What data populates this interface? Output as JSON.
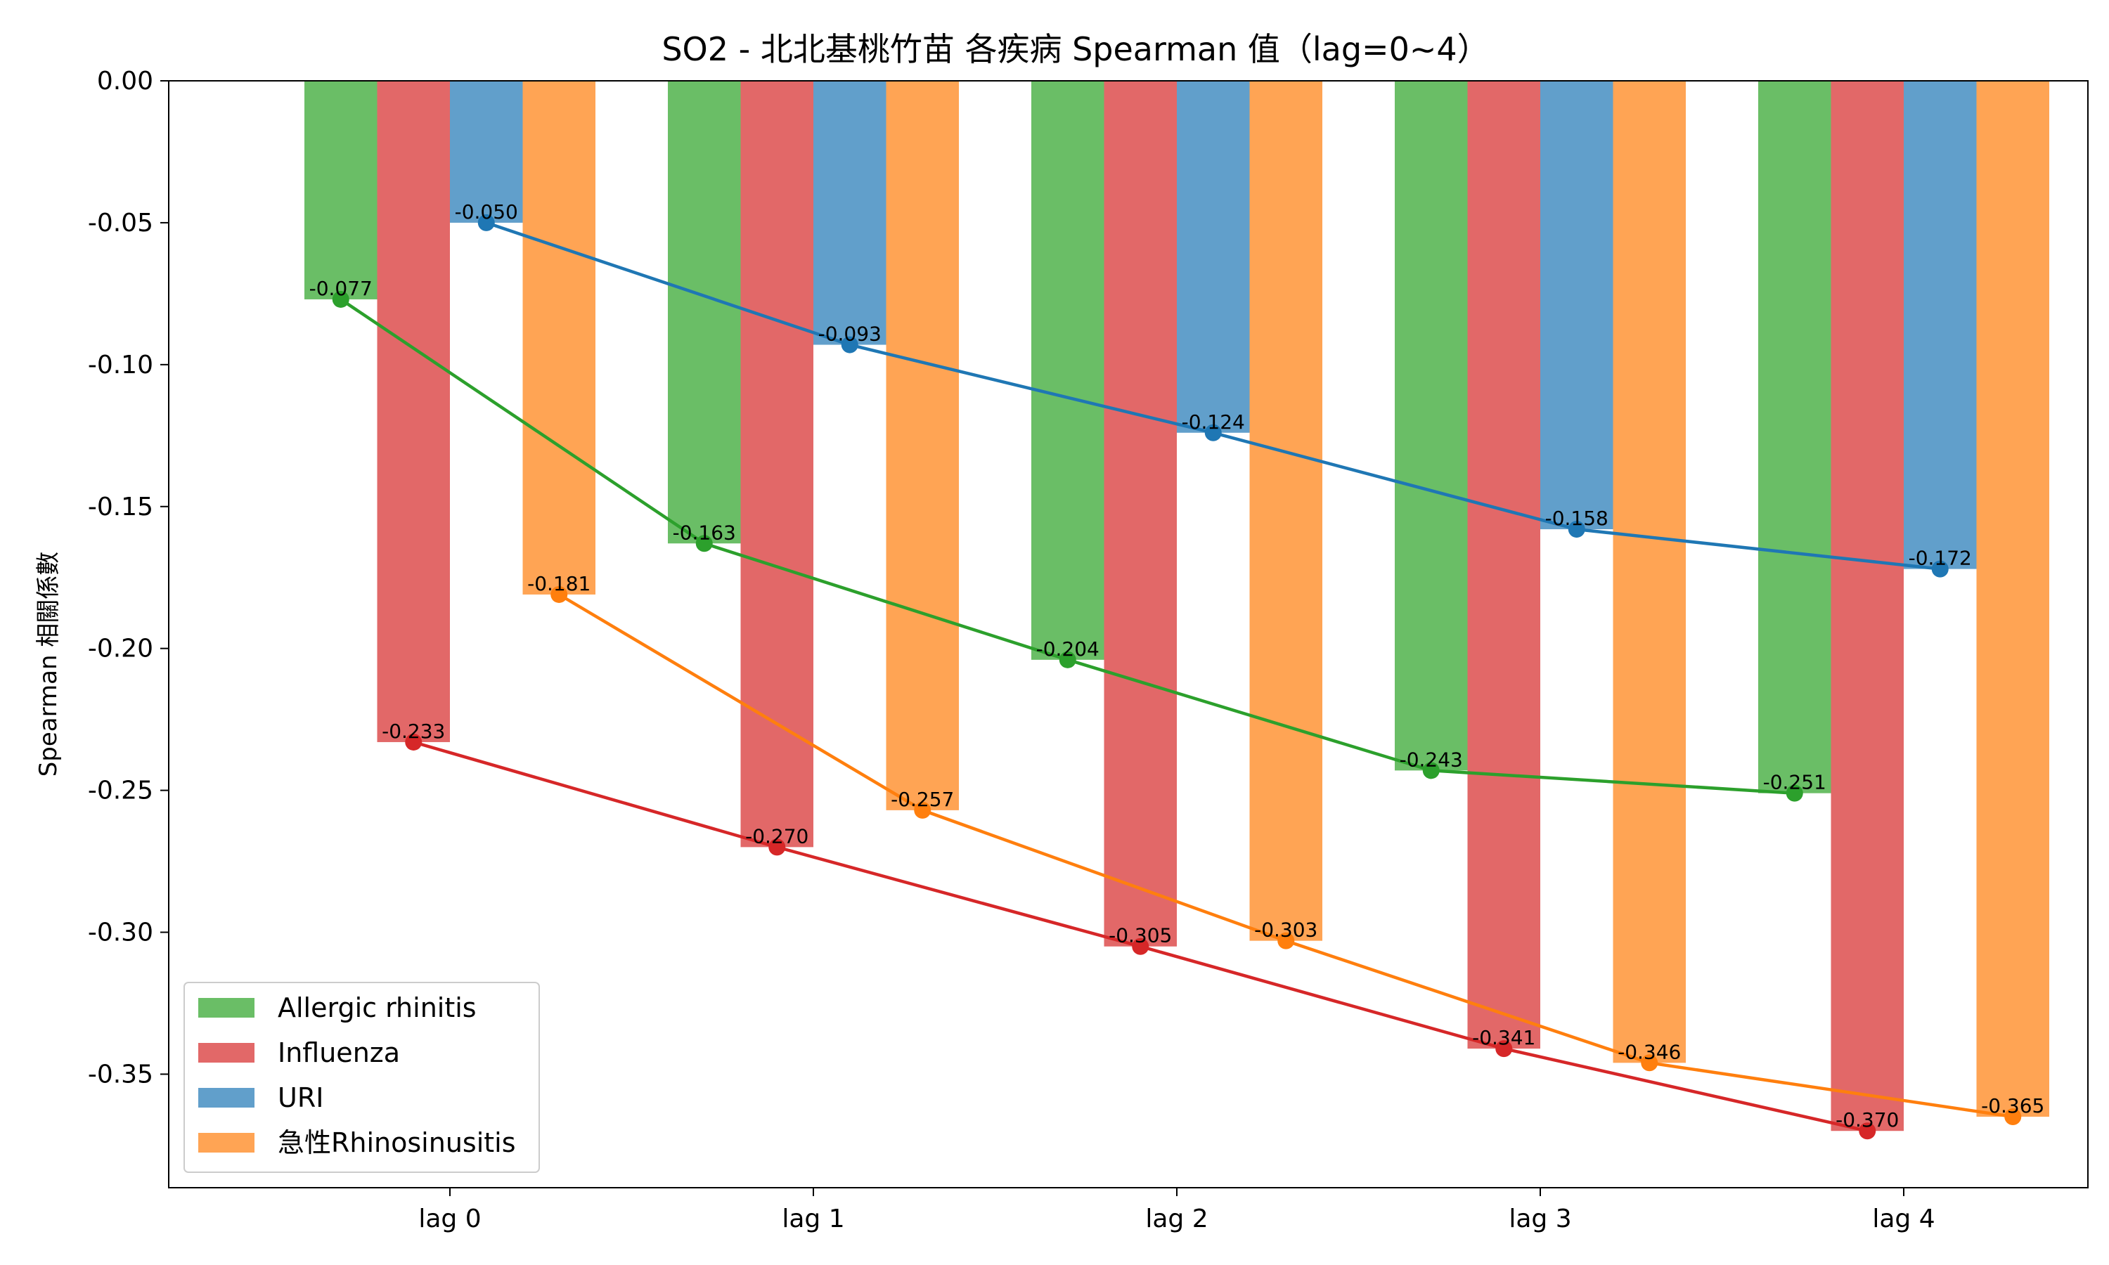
{
  "chart_data": {
    "type": "bar",
    "title": "SO2 - 北北基桃竹苗 各疾病 Spearman 值（lag=0~4）",
    "xlabel": "",
    "ylabel": "Spearman 相關係數",
    "categories": [
      "lag 0",
      "lag 1",
      "lag 2",
      "lag 3",
      "lag 4"
    ],
    "ylim": [
      -0.39,
      0.0
    ],
    "yticks": [
      0.0,
      -0.05,
      -0.1,
      -0.15,
      -0.2,
      -0.25,
      -0.3,
      -0.35
    ],
    "ytick_labels": [
      "0.00",
      "-0.05",
      "-0.10",
      "-0.15",
      "-0.20",
      "-0.25",
      "-0.30",
      "-0.35"
    ],
    "legend_position": "lower-left",
    "grid": false,
    "overlay": "line with markers through each bar end",
    "series": [
      {
        "name": "Allergic rhinitis",
        "bar_color": "#6abe66",
        "line_color": "#2ca02c",
        "values": [
          -0.077,
          -0.163,
          -0.204,
          -0.243,
          -0.251
        ],
        "labels": [
          "-0.077",
          "-0.163",
          "-0.204",
          "-0.243",
          "-0.251"
        ]
      },
      {
        "name": "Influenza",
        "bar_color": "#e26868",
        "line_color": "#d62728",
        "values": [
          -0.233,
          -0.27,
          -0.305,
          -0.341,
          -0.37
        ],
        "labels": [
          "-0.233",
          "-0.270",
          "-0.305",
          "-0.341",
          "-0.370"
        ]
      },
      {
        "name": "URI",
        "bar_color": "#619fcb",
        "line_color": "#1f77b4",
        "values": [
          -0.05,
          -0.093,
          -0.124,
          -0.158,
          -0.172
        ],
        "labels": [
          "-0.050",
          "-0.093",
          "-0.124",
          "-0.158",
          "-0.172"
        ]
      },
      {
        "name": "急性Rhinosinusitis",
        "bar_color": "#ffa454",
        "line_color": "#ff7f0e",
        "values": [
          -0.181,
          -0.257,
          -0.303,
          -0.346,
          -0.365
        ],
        "labels": [
          "-0.181",
          "-0.257",
          "-0.303",
          "-0.346",
          "-0.365"
        ]
      }
    ]
  }
}
